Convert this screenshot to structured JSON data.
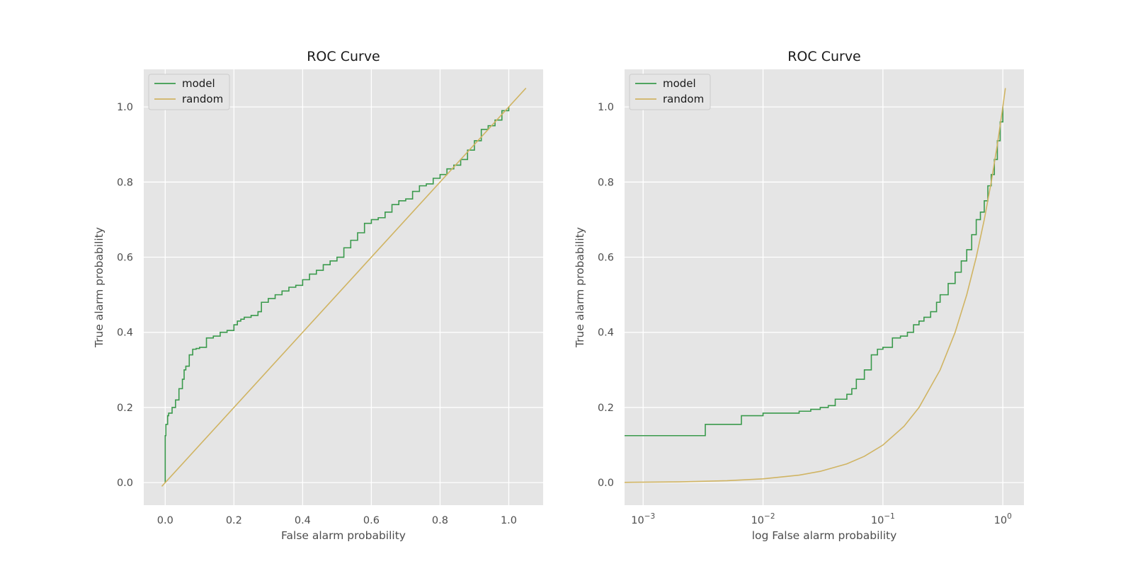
{
  "chart_data": [
    {
      "type": "line",
      "title": "ROC Curve",
      "xlabel": "False alarm probability",
      "ylabel": "True alarm probability",
      "xscale": "linear",
      "xlim": [
        -0.0625,
        1.1
      ],
      "ylim": [
        -0.06,
        1.1
      ],
      "xticks": [
        0.0,
        0.2,
        0.4,
        0.6,
        0.8,
        1.0
      ],
      "xtick_labels": [
        "0.0",
        "0.2",
        "0.4",
        "0.6",
        "0.8",
        "1.0"
      ],
      "yticks": [
        0.0,
        0.2,
        0.4,
        0.6,
        0.8,
        1.0
      ],
      "ytick_labels": [
        "0.0",
        "0.2",
        "0.4",
        "0.6",
        "0.8",
        "1.0"
      ],
      "grid": true,
      "legend": "upper-left",
      "series": [
        {
          "name": "model",
          "color": "#3a9a4c",
          "step": true,
          "x": [
            0.0,
            0.0,
            0.002,
            0.007,
            0.01,
            0.02,
            0.03,
            0.04,
            0.05,
            0.055,
            0.06,
            0.07,
            0.08,
            0.09,
            0.1,
            0.12,
            0.14,
            0.16,
            0.18,
            0.2,
            0.21,
            0.22,
            0.23,
            0.25,
            0.27,
            0.28,
            0.3,
            0.32,
            0.34,
            0.36,
            0.38,
            0.4,
            0.42,
            0.44,
            0.46,
            0.48,
            0.5,
            0.52,
            0.54,
            0.56,
            0.58,
            0.6,
            0.62,
            0.64,
            0.66,
            0.68,
            0.7,
            0.72,
            0.74,
            0.76,
            0.78,
            0.8,
            0.82,
            0.84,
            0.86,
            0.88,
            0.9,
            0.92,
            0.94,
            0.96,
            0.98,
            1.0
          ],
          "y": [
            0.0,
            0.125,
            0.155,
            0.178,
            0.185,
            0.2,
            0.22,
            0.25,
            0.275,
            0.3,
            0.31,
            0.34,
            0.355,
            0.357,
            0.36,
            0.385,
            0.39,
            0.4,
            0.405,
            0.42,
            0.43,
            0.435,
            0.44,
            0.445,
            0.455,
            0.48,
            0.49,
            0.5,
            0.51,
            0.52,
            0.525,
            0.54,
            0.555,
            0.565,
            0.58,
            0.59,
            0.6,
            0.625,
            0.645,
            0.665,
            0.69,
            0.7,
            0.705,
            0.72,
            0.74,
            0.75,
            0.755,
            0.775,
            0.79,
            0.795,
            0.81,
            0.82,
            0.835,
            0.845,
            0.86,
            0.885,
            0.91,
            0.94,
            0.95,
            0.965,
            0.99,
            1.0
          ]
        },
        {
          "name": "random",
          "color": "#d0b463",
          "step": false,
          "x": [
            -0.01,
            1.05
          ],
          "y": [
            -0.01,
            1.05
          ]
        }
      ]
    },
    {
      "type": "line",
      "title": "ROC Curve",
      "xlabel": "log False alarm probability",
      "ylabel": "True alarm probability",
      "xscale": "log",
      "xlim": [
        0.0007,
        1.5
      ],
      "ylim": [
        -0.06,
        1.1
      ],
      "xticks": [
        0.001,
        0.01,
        0.1,
        1.0
      ],
      "xtick_labels": [
        "10",
        "10",
        "10",
        "10"
      ],
      "xtick_exponents": [
        "−3",
        "−2",
        "−1",
        "0"
      ],
      "yticks": [
        0.0,
        0.2,
        0.4,
        0.6,
        0.8,
        1.0
      ],
      "ytick_labels": [
        "0.0",
        "0.2",
        "0.4",
        "0.6",
        "0.8",
        "1.0"
      ],
      "grid": true,
      "legend": "upper-left",
      "series": [
        {
          "name": "model",
          "color": "#3a9a4c",
          "step": true,
          "x": [
            0.0007,
            0.0033,
            0.0066,
            0.01,
            0.02,
            0.025,
            0.03,
            0.035,
            0.04,
            0.05,
            0.055,
            0.06,
            0.07,
            0.08,
            0.09,
            0.1,
            0.12,
            0.14,
            0.16,
            0.18,
            0.2,
            0.22,
            0.25,
            0.28,
            0.3,
            0.35,
            0.4,
            0.45,
            0.5,
            0.55,
            0.6,
            0.65,
            0.7,
            0.75,
            0.8,
            0.85,
            0.9,
            0.95,
            1.0
          ],
          "y": [
            0.125,
            0.155,
            0.178,
            0.185,
            0.19,
            0.195,
            0.2,
            0.205,
            0.222,
            0.235,
            0.25,
            0.275,
            0.3,
            0.34,
            0.355,
            0.36,
            0.385,
            0.39,
            0.4,
            0.42,
            0.43,
            0.44,
            0.455,
            0.48,
            0.5,
            0.53,
            0.56,
            0.59,
            0.62,
            0.66,
            0.7,
            0.72,
            0.75,
            0.79,
            0.82,
            0.86,
            0.91,
            0.96,
            1.0
          ]
        },
        {
          "name": "random",
          "color": "#d0b463",
          "step": false,
          "x": [
            0.0007,
            0.002,
            0.005,
            0.01,
            0.02,
            0.03,
            0.05,
            0.07,
            0.1,
            0.15,
            0.2,
            0.3,
            0.4,
            0.5,
            0.6,
            0.7,
            0.8,
            0.9,
            1.0,
            1.05
          ],
          "y": [
            0.0007,
            0.002,
            0.005,
            0.01,
            0.02,
            0.03,
            0.05,
            0.07,
            0.1,
            0.15,
            0.2,
            0.3,
            0.4,
            0.5,
            0.6,
            0.7,
            0.8,
            0.9,
            1.0,
            1.05
          ]
        }
      ]
    }
  ]
}
